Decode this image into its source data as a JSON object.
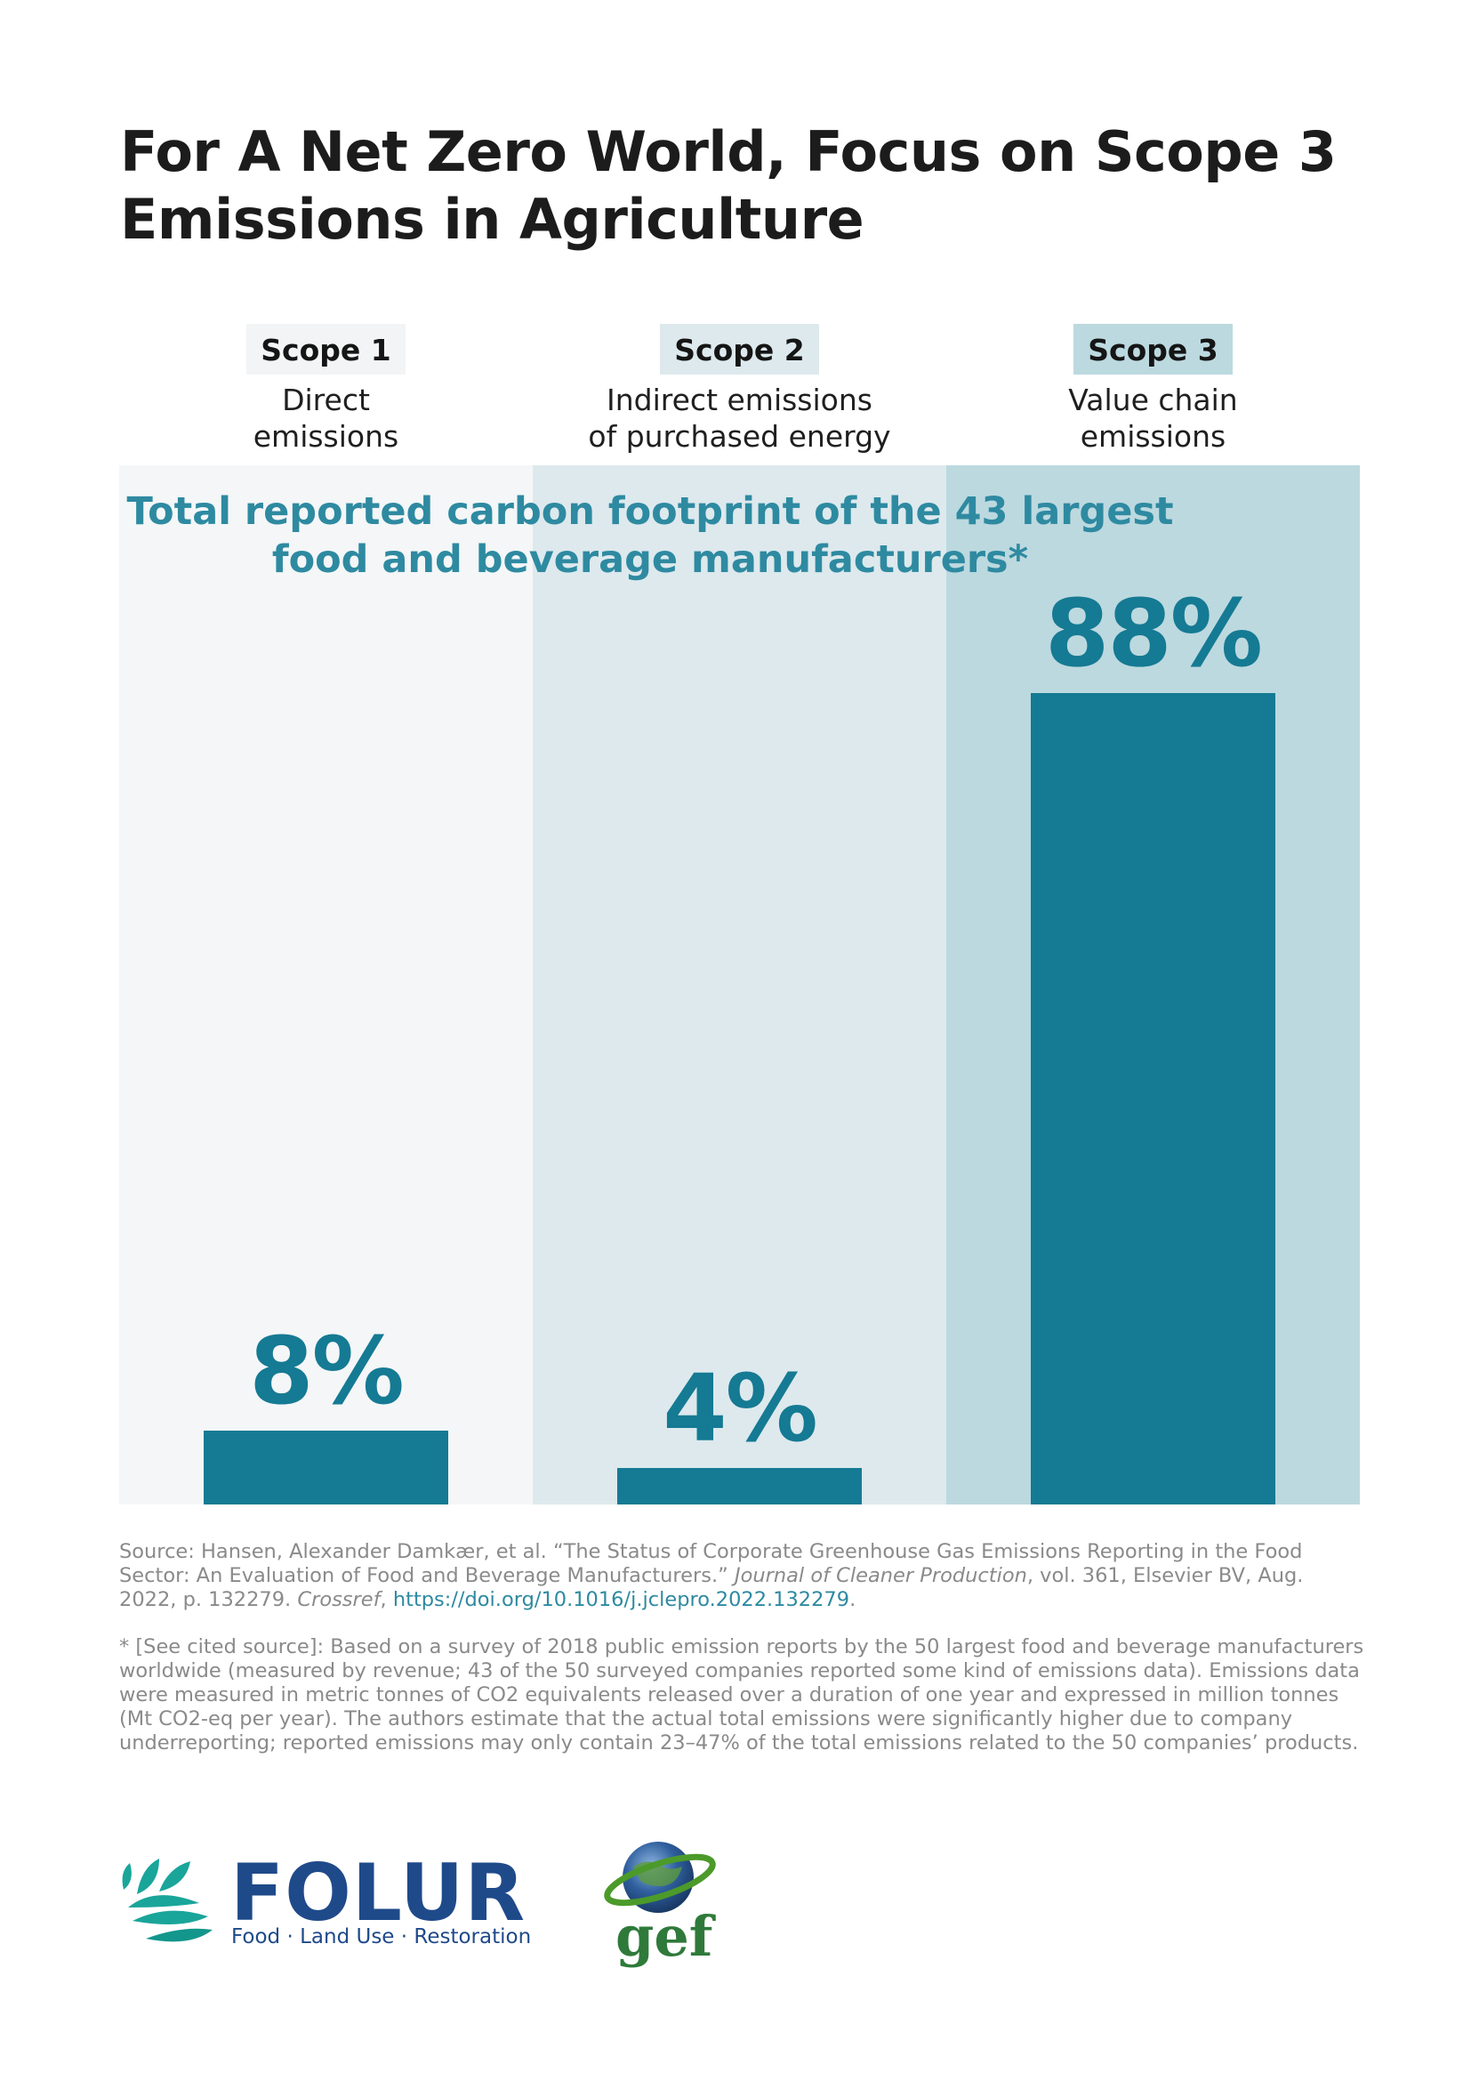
{
  "page": {
    "title_line1": "For A Net Zero World, Focus on Scope 3",
    "title_line2": "Emissions in Agriculture"
  },
  "scopes": [
    {
      "label": "Scope 1",
      "desc_line1": "Direct",
      "desc_line2": "emissions"
    },
    {
      "label": "Scope 2",
      "desc_line1": "Indirect emissions",
      "desc_line2": "of purchased energy"
    },
    {
      "label": "Scope 3",
      "desc_line1": "Value chain",
      "desc_line2": "emissions"
    }
  ],
  "colors": {
    "bar": "#157a93",
    "panel1": "#f4f6f7",
    "panel2": "#dde9ed",
    "panel3": "#bcd9df",
    "badge1": "#f2f4f5",
    "badge2": "#dde9ed",
    "badge3": "#bcd9df",
    "subtitle": "#2e8aa1"
  },
  "chart_data": {
    "type": "bar",
    "title": "Total reported carbon footprint of the 43 largest food and beverage manufacturers*",
    "title_line1": "Total reported carbon footprint of the 43 largest",
    "title_line2": "food and beverage manufacturers*",
    "categories": [
      "Scope 1",
      "Scope 2",
      "Scope 3"
    ],
    "values": [
      8,
      4,
      88
    ],
    "value_labels": [
      "8%",
      "4%",
      "88%"
    ],
    "unit": "%",
    "ylim": [
      0,
      100
    ],
    "grid": false
  },
  "source": {
    "text": "Source: Hansen, Alexander Damkær, et al. “The Status of Corporate Greenhouse Gas Emissions Reporting in the Food Sector: An Evaluation of Food and Beverage Manufacturers.”",
    "journal": "Journal of Cleaner Production",
    "details": ", vol. 361, Elsevier BV, Aug. 2022, p. 132279.",
    "crossref": "Crossref",
    "link": "https://doi.org/10.1016/j.jclepro.2022.132279",
    "end": "."
  },
  "footnote": "* [See cited source]: Based on a survey of 2018 public emission reports by the 50 largest food and beverage manufacturers worldwide (measured by revenue; 43 of the 50 surveyed companies reported some kind of emissions data). Emissions data were measured in metric tonnes of CO2 equivalents released over a duration of one year and expressed in million tonnes (Mt CO2-eq per year). The authors estimate that the actual total emissions were significantly higher due to company underreporting; reported emissions may only contain 23–47% of the total emissions related to the 50 companies’ products.",
  "logos": {
    "folur_name": "FOLUR",
    "folur_tagline": "Food · Land Use · Restoration",
    "gef_name": "gef"
  }
}
